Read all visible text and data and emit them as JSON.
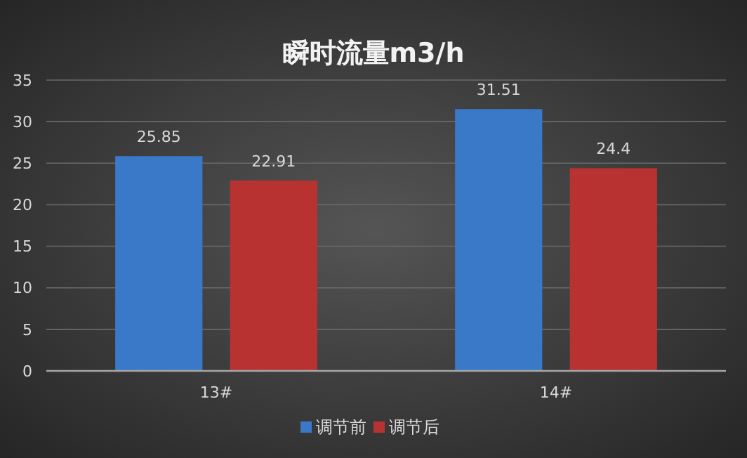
{
  "chart_data": {
    "type": "bar",
    "title": "瞬时流量m3/h",
    "categories": [
      "13#",
      "14#"
    ],
    "series": [
      {
        "name": "调节前",
        "color": "#3a78c8",
        "values": [
          25.85,
          31.51
        ]
      },
      {
        "name": "调节后",
        "color": "#b83232",
        "values": [
          22.91,
          24.4
        ]
      }
    ],
    "ylim": [
      0,
      35
    ],
    "yticks": [
      0,
      5,
      10,
      15,
      20,
      25,
      30,
      35
    ],
    "grid": "y",
    "legend": "bottom",
    "data_labels": true
  }
}
